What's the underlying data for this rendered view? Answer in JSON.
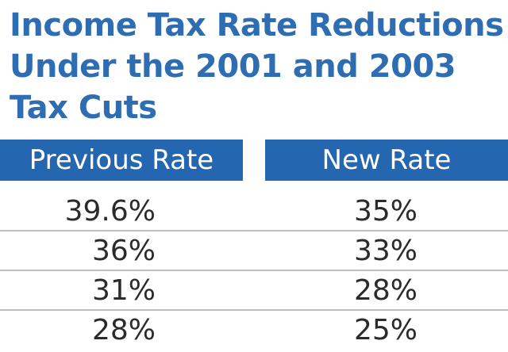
{
  "chart_data": {
    "type": "table",
    "title_lines": [
      "Income Tax Rate Reductions",
      "Under the 2001 and 2003",
      "Tax Cuts"
    ],
    "columns": [
      "Previous Rate",
      "New Rate"
    ],
    "rows": [
      [
        "39.6%",
        "35%"
      ],
      [
        "36%",
        "33%"
      ],
      [
        "31%",
        "28%"
      ],
      [
        "28%",
        "25%"
      ]
    ],
    "colors": {
      "title": "#2f6db3",
      "header_bg": "#2466b0",
      "header_text": "#ffffff",
      "divider": "#bdbdbd"
    }
  }
}
